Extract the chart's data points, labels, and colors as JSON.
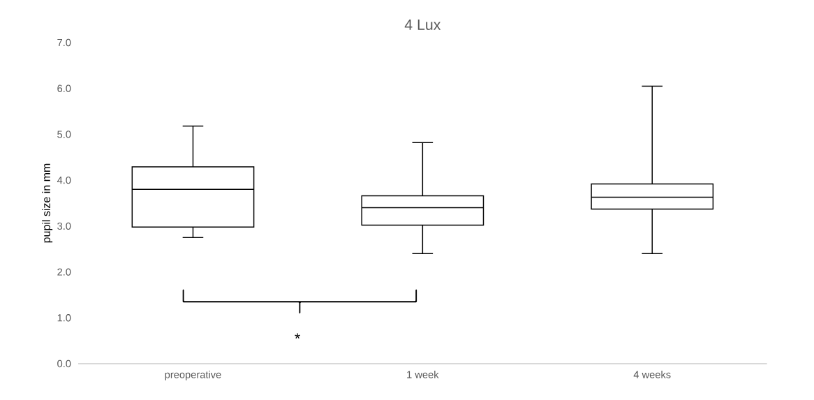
{
  "chart_data": {
    "type": "box",
    "title": "4 Lux",
    "ylabel": "pupil size in mm",
    "color": "#000000",
    "categories": [
      "preoperative",
      "1 week",
      "4 weeks"
    ],
    "boxes": [
      {
        "low": 2.75,
        "q1": 2.98,
        "median": 3.8,
        "q3": 4.29,
        "high": 5.18
      },
      {
        "low": 2.4,
        "q1": 3.02,
        "median": 3.4,
        "q3": 3.66,
        "high": 4.82
      },
      {
        "low": 2.4,
        "q1": 3.37,
        "median": 3.63,
        "q3": 3.92,
        "high": 6.05
      }
    ],
    "ylim": [
      0,
      7
    ],
    "yticks": [
      {
        "value": 0,
        "label": "0.0"
      },
      {
        "value": 1,
        "label": "1.0"
      },
      {
        "value": 2,
        "label": "2.0"
      },
      {
        "value": 3,
        "label": "3.0"
      },
      {
        "value": 4,
        "label": "4.0"
      },
      {
        "value": 5,
        "label": "5.0"
      },
      {
        "value": 6,
        "label": "6.0"
      },
      {
        "value": 7,
        "label": "7.0"
      }
    ],
    "annotations": [
      "*"
    ],
    "grid": false
  }
}
